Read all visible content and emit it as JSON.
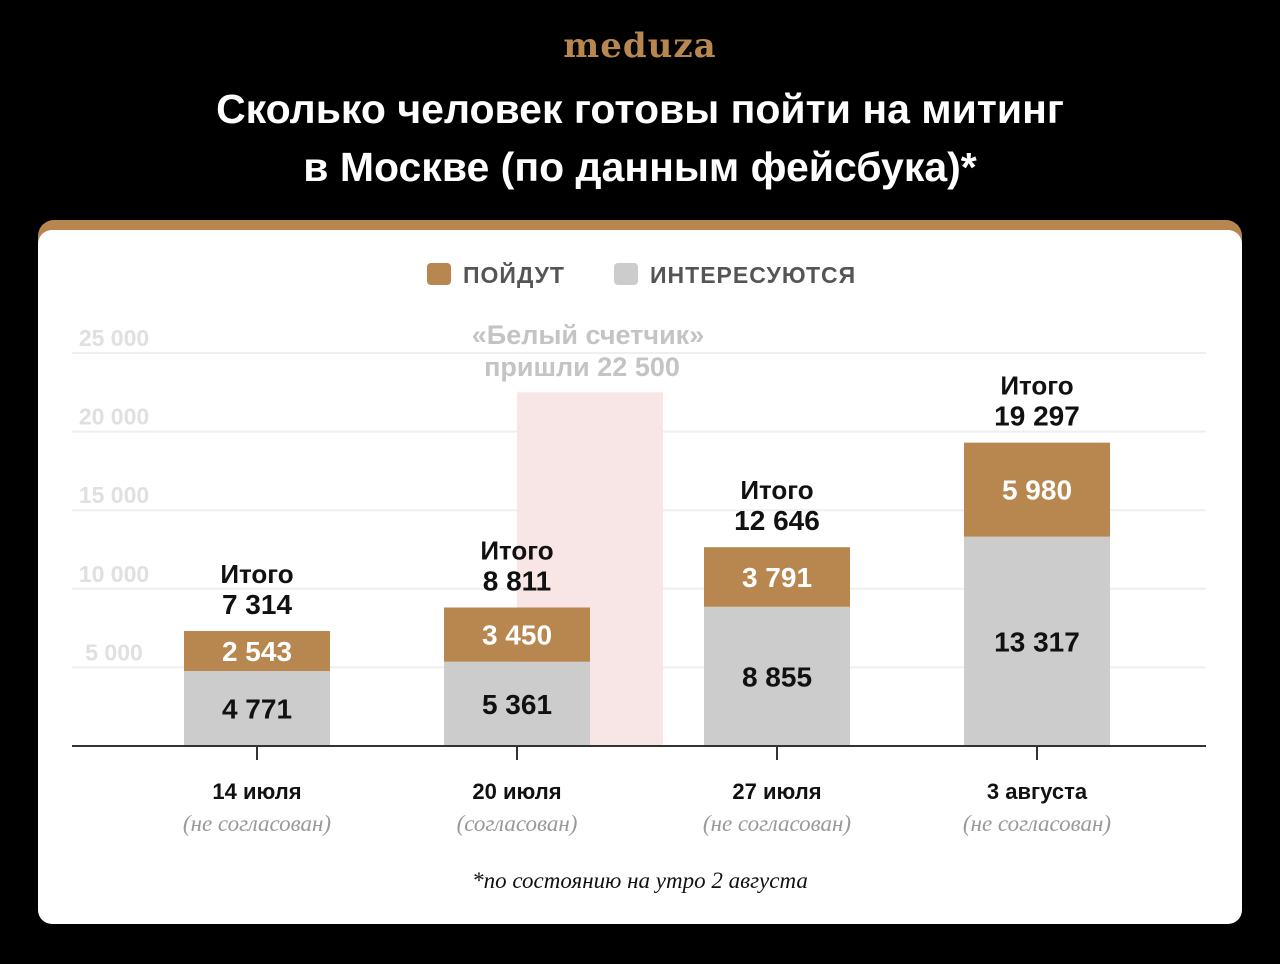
{
  "brand": {
    "logo_text": "meduza",
    "logo_color": "#b8864f"
  },
  "title": {
    "line1": "Сколько человек готовы пойти на митинг",
    "line2": "в Москве (по данным фейсбука)*"
  },
  "footnote": "*по состоянию на утро 2 августа",
  "colors": {
    "going": "#b8864f",
    "interested": "#cccccc",
    "highlight": "#f8e6e6",
    "axis_labels": "#e0e0e0",
    "annotation": "#c4c4c4",
    "grid": "#efefef"
  },
  "chart_data": {
    "type": "bar",
    "stacked": true,
    "legend": {
      "placement": "top-center",
      "items": [
        {
          "key": "going",
          "label": "ПОЙДУТ"
        },
        {
          "key": "interested",
          "label": "ИНТЕРЕСУЮТСЯ"
        }
      ]
    },
    "ylim": [
      0,
      25000
    ],
    "yticks": [
      5000,
      10000,
      15000,
      20000,
      25000
    ],
    "ytick_labels": [
      "5 000",
      "10 000",
      "15 000",
      "20 000",
      "25 000"
    ],
    "grid": true,
    "categories": [
      "14 июля",
      "20 июля",
      "27 июля",
      "3 августа"
    ],
    "category_notes": [
      "(не согласован)",
      "(согласован)",
      "(не согласован)",
      "(не согласован)"
    ],
    "series": [
      {
        "key": "interested",
        "name": "ИНТЕРЕСУЮТСЯ",
        "values": [
          4771,
          5361,
          8855,
          13317
        ],
        "labels": [
          "4 771",
          "5 361",
          "8 855",
          "13 317"
        ]
      },
      {
        "key": "going",
        "name": "ПОЙДУТ",
        "values": [
          2543,
          3450,
          3791,
          5980
        ],
        "labels": [
          "2 543",
          "3 450",
          "3 791",
          "5 980"
        ]
      }
    ],
    "totals": {
      "prefix": "Итого",
      "values": [
        7314,
        8811,
        12646,
        19297
      ],
      "labels": [
        "7 314",
        "8 811",
        "12 646",
        "19 297"
      ]
    },
    "annotation": {
      "category_index": 1,
      "value": 22500,
      "line1": "«Белый счетчик»",
      "line2": "пришли 22 500"
    }
  }
}
